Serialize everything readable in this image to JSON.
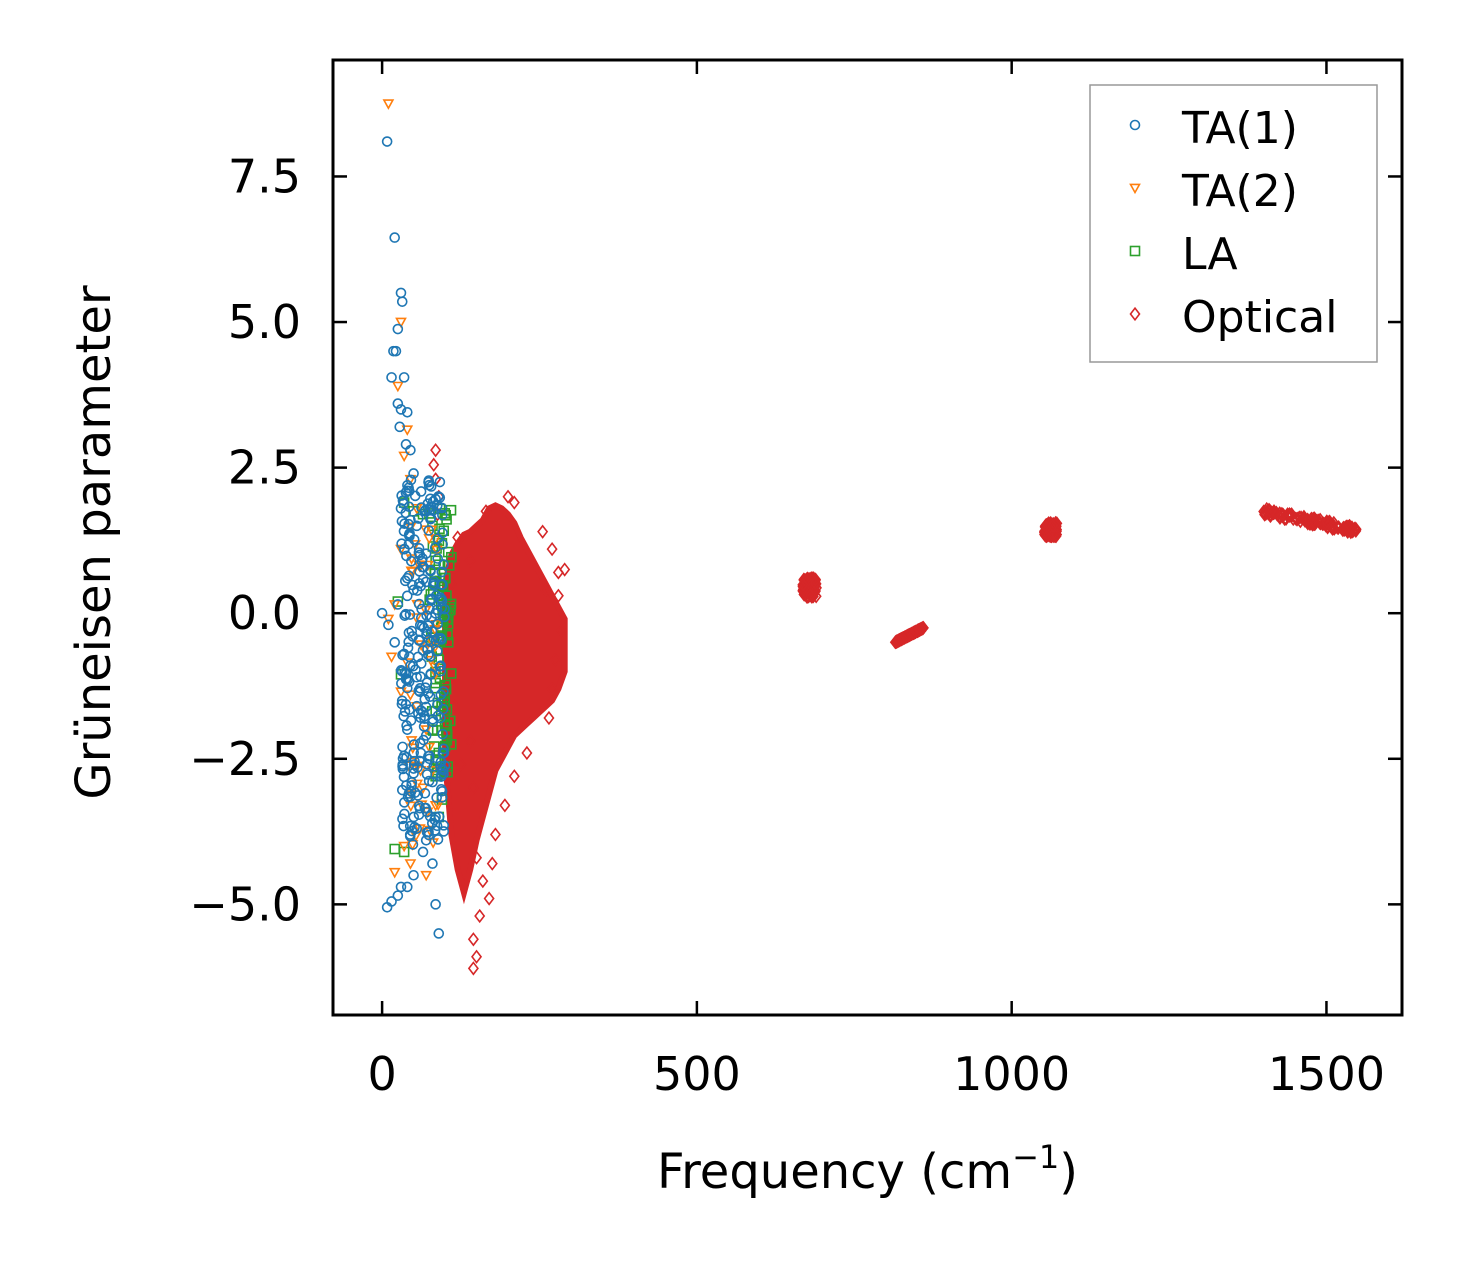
{
  "chart_data": {
    "type": "scatter",
    "title": "",
    "xlabel": "Frequency (cm",
    "xlabel_sup": "−1",
    "xlabel_close": ")",
    "ylabel": "Grüneisen parameter",
    "xlim": [
      -78,
      1620
    ],
    "ylim": [
      -6.9,
      9.5
    ],
    "x_ticks": [
      0,
      500,
      1000,
      1500
    ],
    "x_tick_labels": [
      "0",
      "500",
      "1000",
      "1500"
    ],
    "y_ticks": [
      -5.0,
      -2.5,
      0.0,
      2.5,
      5.0,
      7.5
    ],
    "y_tick_labels": [
      "−5.0",
      "−2.5",
      "0.0",
      "2.5",
      "5.0",
      "7.5"
    ],
    "legend_position": "top-right",
    "colors": {
      "ta1": "#1f77b4",
      "ta2": "#ff7f0e",
      "la": "#2ca02c",
      "optical": "#d62728",
      "axes": "#000000",
      "legend_border": "#999999"
    },
    "series": [
      {
        "name": "TA(1)",
        "marker": "circle",
        "color": "#1f77b4",
        "points": [
          [
            8,
            8.1
          ],
          [
            20,
            6.45
          ],
          [
            30,
            5.5
          ],
          [
            32,
            5.35
          ],
          [
            25,
            4.88
          ],
          [
            18,
            4.5
          ],
          [
            22,
            4.5
          ],
          [
            15,
            4.05
          ],
          [
            35,
            4.05
          ],
          [
            25,
            3.6
          ],
          [
            30,
            3.5
          ],
          [
            40,
            3.45
          ],
          [
            28,
            3.2
          ],
          [
            38,
            2.9
          ],
          [
            45,
            2.8
          ],
          [
            50,
            2.4
          ],
          [
            30,
            1.8
          ],
          [
            45,
            1.6
          ],
          [
            55,
            1.5
          ],
          [
            35,
            1.1
          ],
          [
            60,
            1.0
          ],
          [
            40,
            0.6
          ],
          [
            50,
            0.4
          ],
          [
            25,
            0.15
          ],
          [
            0,
            0.0
          ],
          [
            10,
            -0.2
          ],
          [
            20,
            -0.5
          ],
          [
            35,
            -0.7
          ],
          [
            45,
            -0.9
          ],
          [
            55,
            -1.1
          ],
          [
            60,
            -1.35
          ],
          [
            65,
            -1.7
          ],
          [
            40,
            -2.0
          ],
          [
            70,
            -2.1
          ],
          [
            35,
            -2.45
          ],
          [
            75,
            -2.5
          ],
          [
            50,
            -2.75
          ],
          [
            80,
            -2.9
          ],
          [
            45,
            -3.15
          ],
          [
            60,
            -3.35
          ],
          [
            85,
            -3.5
          ],
          [
            55,
            -3.7
          ],
          [
            70,
            -3.9
          ],
          [
            65,
            -4.1
          ],
          [
            80,
            -4.3
          ],
          [
            50,
            -4.5
          ],
          [
            40,
            -4.7
          ],
          [
            30,
            -4.7
          ],
          [
            25,
            -4.85
          ],
          [
            15,
            -4.95
          ],
          [
            8,
            -5.05
          ],
          [
            85,
            -5.0
          ],
          [
            90,
            -5.5
          ]
        ]
      },
      {
        "name": "TA(2)",
        "marker": "triangle-down",
        "color": "#ff7f0e",
        "points": [
          [
            10,
            8.75
          ],
          [
            30,
            5.0
          ],
          [
            25,
            3.9
          ],
          [
            40,
            3.15
          ],
          [
            35,
            2.7
          ],
          [
            45,
            2.3
          ],
          [
            55,
            1.8
          ],
          [
            30,
            1.1
          ],
          [
            60,
            0.8
          ],
          [
            20,
            0.15
          ],
          [
            10,
            -0.1
          ],
          [
            15,
            -0.75
          ],
          [
            40,
            -0.85
          ],
          [
            30,
            -1.35
          ],
          [
            45,
            -1.4
          ],
          [
            55,
            -1.6
          ],
          [
            70,
            -2.0
          ],
          [
            75,
            -2.3
          ],
          [
            80,
            -2.7
          ],
          [
            65,
            -3.0
          ],
          [
            85,
            -3.3
          ],
          [
            60,
            -3.7
          ],
          [
            35,
            -4.0
          ],
          [
            45,
            -4.3
          ],
          [
            20,
            -4.45
          ],
          [
            70,
            -4.5
          ]
        ]
      },
      {
        "name": "LA",
        "marker": "square",
        "color": "#2ca02c",
        "points": [
          [
            35,
            1.9
          ],
          [
            50,
            1.75
          ],
          [
            65,
            1.7
          ],
          [
            80,
            1.5
          ],
          [
            95,
            1.2
          ],
          [
            105,
            1.05
          ],
          [
            85,
            0.9
          ],
          [
            100,
            0.6
          ],
          [
            90,
            0.3
          ],
          [
            25,
            0.2
          ],
          [
            100,
            0.0
          ],
          [
            95,
            -0.3
          ],
          [
            105,
            -0.5
          ],
          [
            90,
            -0.8
          ],
          [
            30,
            -1.05
          ],
          [
            85,
            -1.2
          ],
          [
            95,
            -1.6
          ],
          [
            80,
            -2.0
          ],
          [
            90,
            -2.4
          ],
          [
            85,
            -2.8
          ],
          [
            95,
            -3.2
          ],
          [
            90,
            -3.5
          ],
          [
            20,
            -4.05
          ],
          [
            35,
            -4.1
          ]
        ]
      },
      {
        "name": "Optical",
        "marker": "diamond",
        "color": "#d62728",
        "points": [
          [
            85,
            2.8
          ],
          [
            82,
            2.55
          ],
          [
            85,
            2.3
          ],
          [
            90,
            2.0
          ],
          [
            88,
            1.7
          ],
          [
            165,
            1.75
          ],
          [
            200,
            2.0
          ],
          [
            210,
            1.9
          ],
          [
            255,
            1.4
          ],
          [
            270,
            1.1
          ],
          [
            290,
            0.75
          ],
          [
            280,
            0.7
          ],
          [
            120,
            1.3
          ],
          [
            140,
            0.9
          ],
          [
            110,
            0.5
          ],
          [
            260,
            0.4
          ],
          [
            280,
            0.3
          ],
          [
            285,
            -0.3
          ],
          [
            275,
            -0.8
          ],
          [
            270,
            -1.3
          ],
          [
            265,
            -1.8
          ],
          [
            115,
            -1.6
          ],
          [
            140,
            -2.2
          ],
          [
            125,
            -2.6
          ],
          [
            230,
            -2.4
          ],
          [
            210,
            -2.8
          ],
          [
            145,
            -3.0
          ],
          [
            195,
            -3.3
          ],
          [
            180,
            -3.8
          ],
          [
            150,
            -4.2
          ],
          [
            175,
            -4.3
          ],
          [
            160,
            -4.6
          ],
          [
            170,
            -4.9
          ],
          [
            155,
            -5.2
          ],
          [
            145,
            -5.6
          ],
          [
            150,
            -5.9
          ],
          [
            145,
            -6.1
          ]
        ],
        "clusters": [
          {
            "x": [
              100,
              290
            ],
            "y_top": [
              0.5,
              1.0,
              1.2,
              1.35,
              1.4,
              1.5,
              1.6,
              1.8,
              1.85,
              1.8,
              1.7,
              1.55,
              1.3,
              1.1,
              0.9,
              0.7,
              0.5,
              0.3,
              0.1,
              -0.1
            ],
            "y_bottom": [
              -2.5,
              -3.8,
              -4.4,
              -4.8,
              -4.4,
              -3.9,
              -3.5,
              -3.1,
              -2.7,
              -2.5,
              -2.3,
              -2.1,
              -2.0,
              -1.9,
              -1.8,
              -1.7,
              -1.6,
              -1.5,
              -1.3,
              -1.0
            ]
          },
          {
            "x": [
              668,
              690
            ],
            "y": [
              0.28,
              0.6
            ]
          },
          {
            "x": [
              815,
              860
            ],
            "y": [
              -0.5,
              -0.25
            ]
          },
          {
            "x": [
              1052,
              1072
            ],
            "y": [
              1.32,
              1.55
            ]
          },
          {
            "x": [
              1400,
              1550
            ],
            "y": [
              1.42,
              1.75
            ]
          }
        ]
      }
    ]
  }
}
